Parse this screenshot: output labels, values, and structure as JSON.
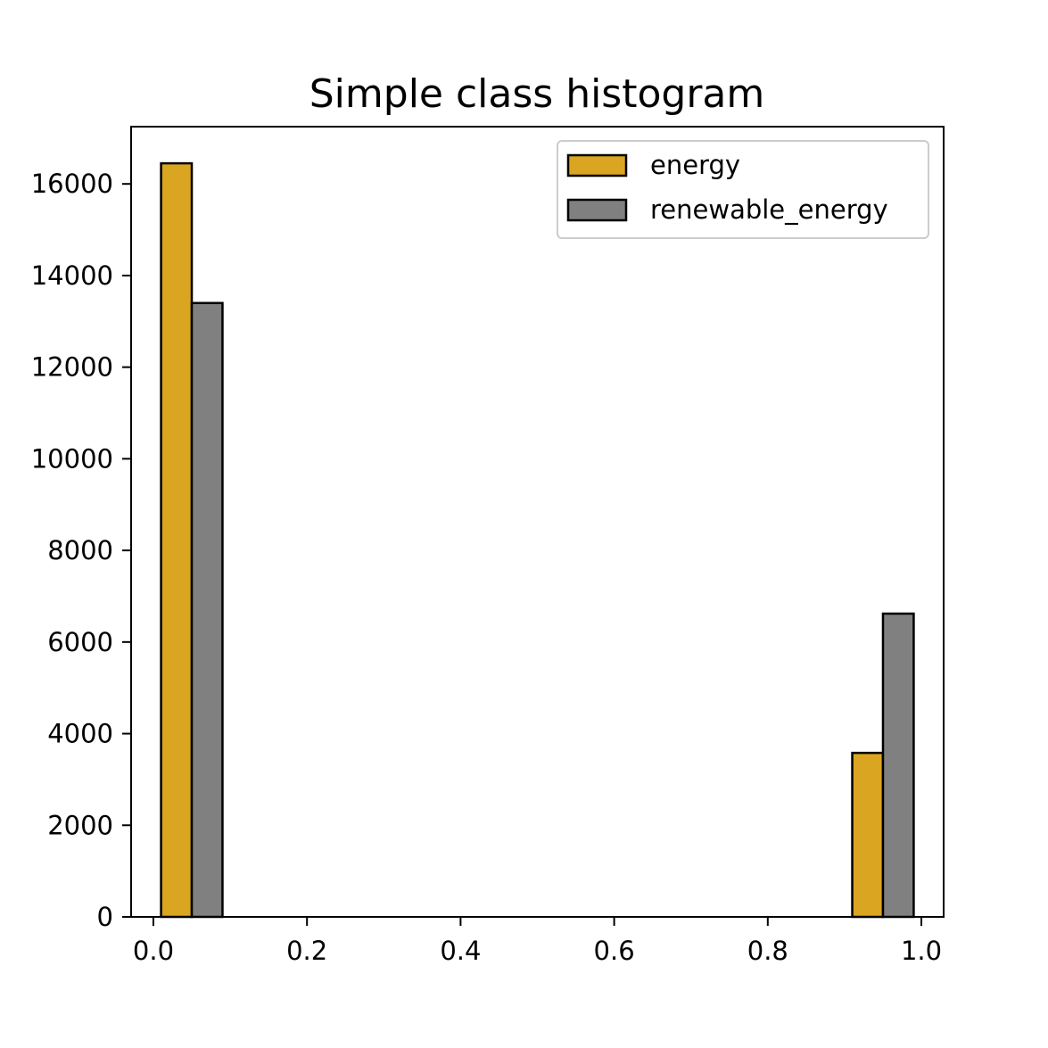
{
  "chart_data": {
    "type": "bar",
    "title": "Simple class histogram",
    "xlabel": "",
    "ylabel": "",
    "xlim": [
      -0.029,
      1.029
    ],
    "ylim": [
      0,
      17250
    ],
    "xticks": [
      0.0,
      0.2,
      0.4,
      0.6,
      0.8,
      1.0
    ],
    "xtick_labels": [
      "0.0",
      "0.2",
      "0.4",
      "0.6",
      "0.8",
      "1.0"
    ],
    "yticks": [
      0,
      2000,
      4000,
      6000,
      8000,
      10000,
      12000,
      14000,
      16000
    ],
    "ytick_labels": [
      "0",
      "2000",
      "4000",
      "6000",
      "8000",
      "10000",
      "12000",
      "14000",
      "16000"
    ],
    "grid": false,
    "legend_position": "top-right",
    "bin_edges": [
      0.0,
      0.1,
      0.2,
      0.3,
      0.4,
      0.5,
      0.6,
      0.7,
      0.8,
      0.9,
      1.0
    ],
    "series": [
      {
        "name": "energy",
        "color": "#DAA520",
        "values": [
          16450,
          0,
          0,
          0,
          0,
          0,
          0,
          0,
          0,
          3580
        ]
      },
      {
        "name": "renewable_energy",
        "color": "#808080",
        "values": [
          13400,
          0,
          0,
          0,
          0,
          0,
          0,
          0,
          0,
          6620
        ]
      }
    ]
  }
}
